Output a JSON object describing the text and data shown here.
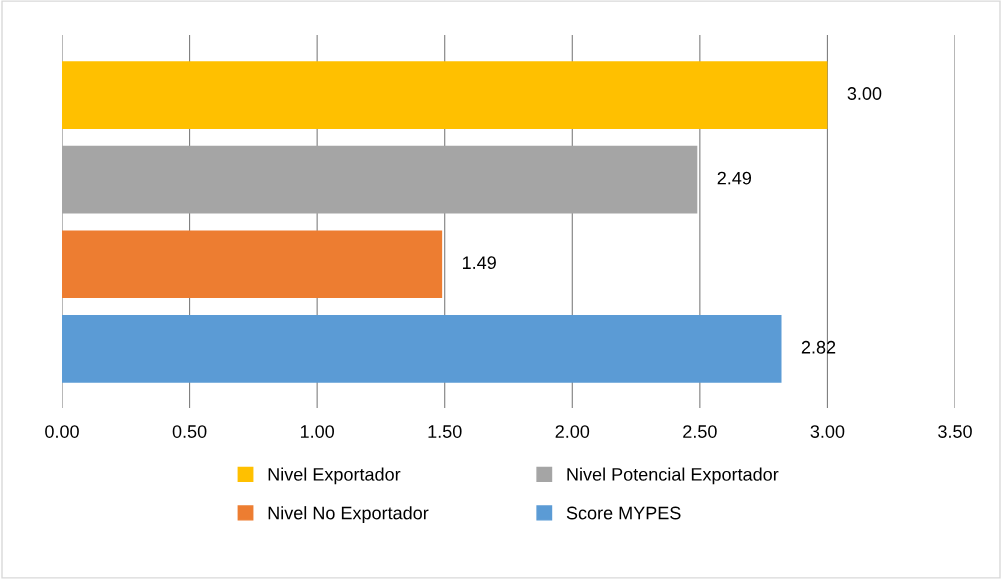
{
  "chart_data": {
    "type": "bar",
    "orientation": "horizontal",
    "categories": [
      null
    ],
    "series": [
      {
        "name": "Nivel Exportador",
        "color": "#ffc000",
        "values": [
          3.0
        ],
        "value_labels": [
          "3.00"
        ]
      },
      {
        "name": "Nivel Potencial Exportador",
        "color": "#a5a5a5",
        "values": [
          2.49
        ],
        "value_labels": [
          "2.49"
        ]
      },
      {
        "name": "Nivel No Exportador",
        "color": "#ed7d31",
        "values": [
          1.49
        ],
        "value_labels": [
          "1.49"
        ]
      },
      {
        "name": "Score MYPES",
        "color": "#5b9bd5",
        "values": [
          2.82
        ],
        "value_labels": [
          "2.82"
        ]
      }
    ],
    "xlim": [
      0,
      3.5
    ],
    "xticks": [
      "0.00",
      "0.50",
      "1.00",
      "1.50",
      "2.00",
      "2.50",
      "3.00",
      "3.50"
    ],
    "grid": "x",
    "legend": "bottom"
  }
}
